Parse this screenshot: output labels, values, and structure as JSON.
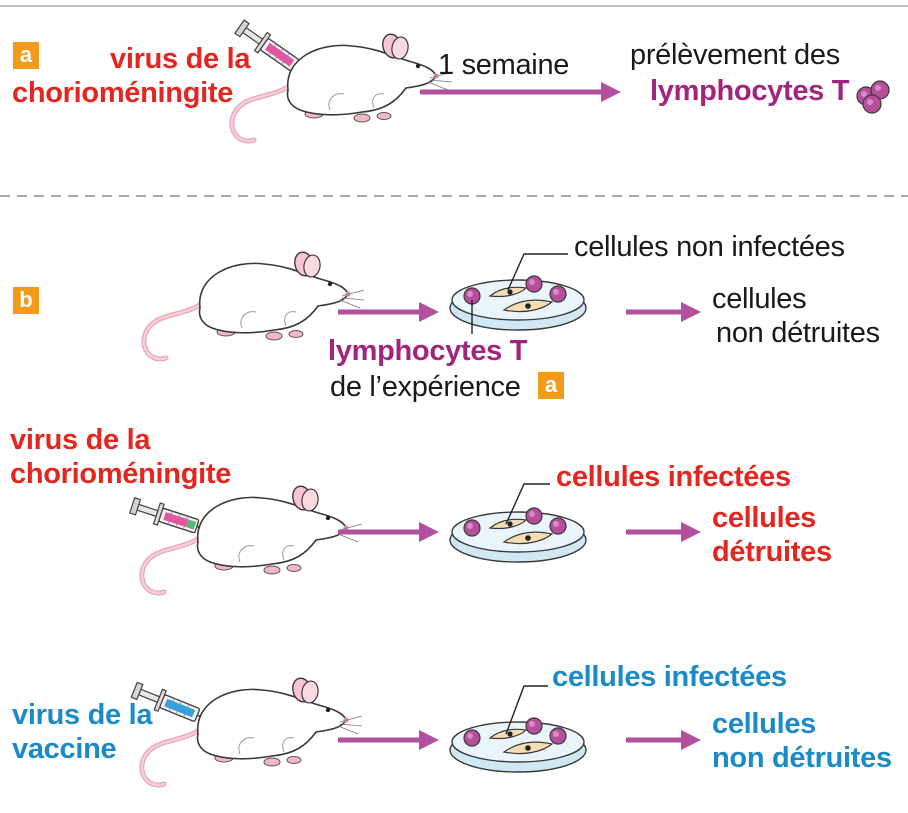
{
  "panel_a": {
    "badge": "a",
    "virus_line1": "virus de la",
    "virus_line2": "chorioméningite",
    "arrow_label": "1 semaine",
    "result_line1": "prélèvement des",
    "result_line2": "lymphocytes T"
  },
  "panel_b": {
    "badge": "b",
    "row1": {
      "top_label": "cellules non infectées",
      "lymph_label": "lymphocytes T",
      "source_label": "de l’expérience",
      "source_badge": "a",
      "result_line1": "cellules",
      "result_line2": "non détruites"
    },
    "row2": {
      "virus_line1": "virus de la",
      "virus_line2": "chorioméningite",
      "top_label": "cellules infectées",
      "result_line1": "cellules",
      "result_line2": "détruites"
    },
    "row3": {
      "virus_line1": "virus de la",
      "virus_line2": "vaccine",
      "top_label": "cellules infectées",
      "result_line1": "cellules",
      "result_line2": "non détruites"
    }
  },
  "colors": {
    "red": "#e3261f",
    "magenta": "#a3247e",
    "blue": "#1a8ac8",
    "arrow": "#b0509e",
    "badge": "#f39a1b",
    "syringe_pink": "#e0569f",
    "syringe_green": "#57b870",
    "syringe_blue": "#3aa0dc"
  }
}
